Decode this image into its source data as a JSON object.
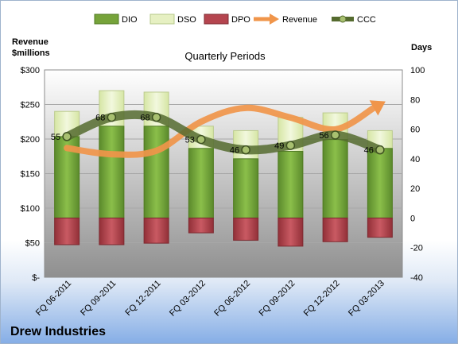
{
  "chart_data": {
    "type": "bar",
    "subtitle": "Quarterly Periods",
    "company": "Drew Industries",
    "left_axis": {
      "label_line1": "Revenue",
      "label_line2": "$millions",
      "min": 0,
      "max": 300,
      "step": 50,
      "tick_labels": [
        "$-",
        "$50",
        "$100",
        "$150",
        "$200",
        "$250",
        "$300"
      ]
    },
    "right_axis": {
      "label": "Days",
      "min": -40,
      "max": 100,
      "step": 20,
      "tick_labels": [
        "-40",
        "-20",
        "0",
        "20",
        "40",
        "60",
        "80",
        "100"
      ]
    },
    "categories": [
      "FQ 06-2011",
      "FQ 09-2011",
      "FQ 12-2011",
      "FQ 03-2012",
      "FQ 06-2012",
      "FQ 09-2012",
      "FQ 12-2012",
      "FQ 03-2013"
    ],
    "legend": [
      "DIO",
      "DSO",
      "DPO",
      "Revenue",
      "CCC"
    ],
    "series": [
      {
        "name": "DIO",
        "axis": "right",
        "values": [
          55,
          62,
          62,
          47,
          40,
          45,
          53,
          47
        ]
      },
      {
        "name": "DSO",
        "axis": "right",
        "values": [
          72,
          86,
          85,
          62,
          59,
          68,
          71,
          59
        ]
      },
      {
        "name": "DPO",
        "axis": "right",
        "values": [
          -18,
          -18,
          -17,
          -10,
          -15,
          -19,
          -16,
          -13
        ]
      },
      {
        "name": "Revenue",
        "axis": "left",
        "values": [
          187,
          178,
          183,
          225,
          245,
          231,
          214,
          250
        ]
      },
      {
        "name": "CCC",
        "axis": "right",
        "values": [
          55,
          68,
          68,
          53,
          46,
          49,
          56,
          46
        ]
      }
    ],
    "ccc_labels": [
      "55",
      "68",
      "68",
      "53",
      "46",
      "49",
      "56",
      "46"
    ],
    "colors": {
      "DIO": "#76a33a",
      "DSO": "#e6f0c2",
      "DPO": "#b5454f",
      "Revenue": "#f0954a",
      "CCC": "#556b2f"
    }
  }
}
